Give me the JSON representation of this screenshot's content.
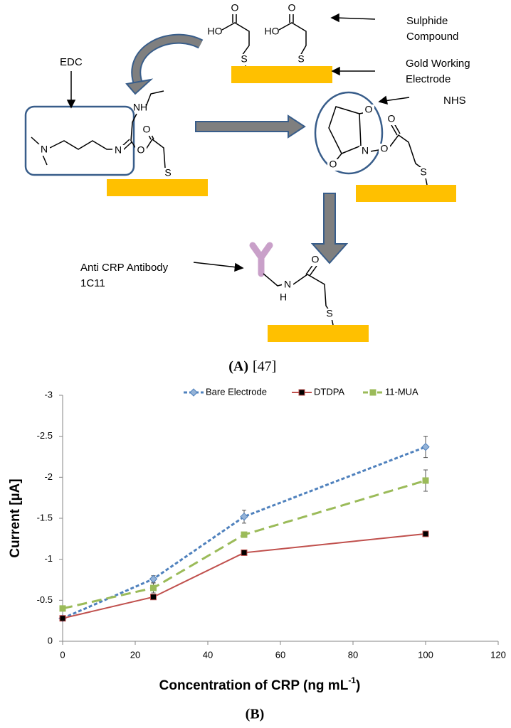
{
  "figure_a": {
    "sulphide_label": [
      "Sulphide",
      "Compound"
    ],
    "gold_label": [
      "Gold Working",
      "Electrode"
    ],
    "nhs_label": "NHS",
    "edc_label": "EDC",
    "antibody_label": [
      "Anti CRP Antibody",
      "1C11"
    ],
    "atoms": [
      "HO",
      "O",
      "S",
      "HO",
      "O",
      "S",
      "NH",
      "N",
      "N",
      "O",
      "O",
      "S",
      "O",
      "N",
      "O",
      "O",
      "O",
      "S",
      "O",
      "N",
      "H",
      "S"
    ],
    "caption": "(A)",
    "reference": "[47]"
  },
  "chart_data": {
    "type": "line",
    "x": [
      0,
      25,
      50,
      100
    ],
    "series": [
      {
        "name": "Bare Electrode",
        "color": "#4f81bd",
        "marker_color": "#95b3d7",
        "marker": "diamond",
        "line_style": "dotted",
        "values": [
          -0.28,
          -0.76,
          -1.52,
          -2.37
        ],
        "errors": [
          0.02,
          0.04,
          0.08,
          0.13
        ]
      },
      {
        "name": "DTDPA",
        "color": "#c0504d",
        "marker_color": "#000000",
        "marker": "square",
        "line_style": "solid",
        "values": [
          -0.28,
          -0.54,
          -1.08,
          -1.31
        ]
      },
      {
        "name": "11-MUA",
        "color": "#9bbb59",
        "marker_color": "#9bbb59",
        "marker": "square",
        "line_style": "dashed",
        "values": [
          -0.4,
          -0.65,
          -1.3,
          -1.96
        ],
        "errors": [
          0.02,
          0.06,
          0.03,
          0.13
        ]
      }
    ],
    "xlim": [
      0,
      120
    ],
    "xticks": [
      0,
      20,
      40,
      60,
      80,
      100,
      120
    ],
    "ylim": [
      0,
      -3
    ],
    "yticks": [
      0,
      -0.5,
      -1,
      -1.5,
      -2,
      -2.5,
      -3
    ],
    "y_label": "Current  [µA]",
    "x_label": [
      "Concentration of CRP (ng mL",
      "-1",
      ")"
    ],
    "legend": "top",
    "caption": "(B)"
  }
}
